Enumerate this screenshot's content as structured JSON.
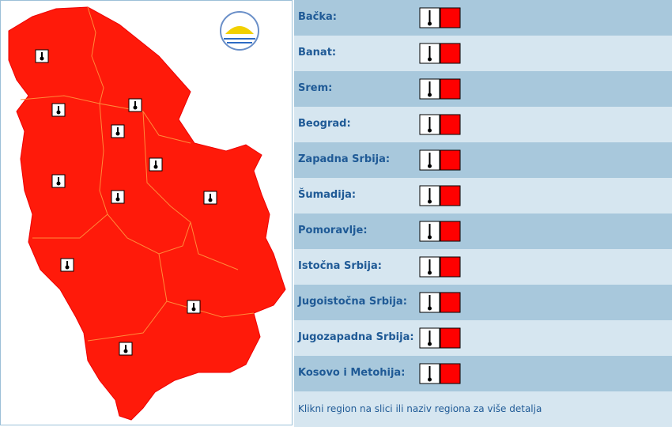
{
  "regions": [
    "Bačka:",
    "Banat:",
    "Srem:",
    "Beograd:",
    "Zapadna Srbija:",
    "Šumadija:",
    "Pomoravlje:",
    "Istočna Srbija:",
    "Jugoistočna Srbija:",
    "Jugozapadna Srbija:",
    "Kosovo i Metohija:"
  ],
  "note": "Klikni region na slici ili naziv regiona za više detalja"
}
